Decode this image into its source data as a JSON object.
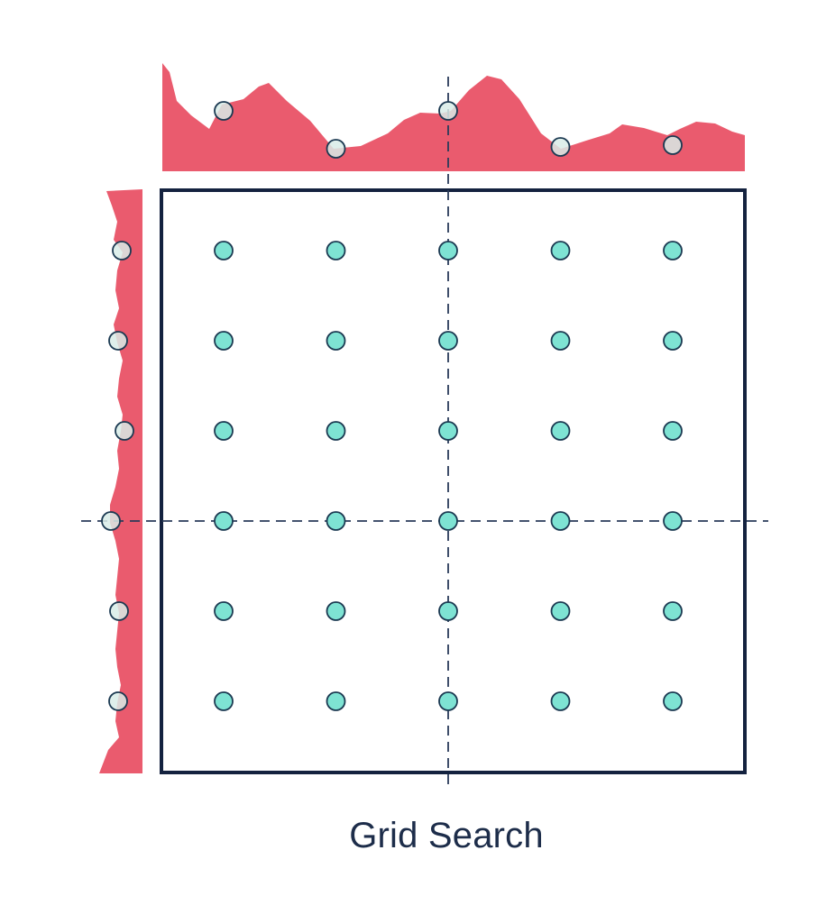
{
  "title": "Grid Search",
  "grid": {
    "columns": 5,
    "rows": 6,
    "highlight_column_index": 2,
    "highlight_row_index": 3
  },
  "colors": {
    "frame": "#14223f",
    "point_fill": "#7ee3d3",
    "point_stroke": "#1c3a52",
    "distribution_fill": "#ea5b6e",
    "dashed_line": "#2a3b5a",
    "caption": "#1d2d4a"
  },
  "marginals": {
    "top": "performance-distribution-over-parameter-1",
    "left": "performance-distribution-over-parameter-2"
  }
}
